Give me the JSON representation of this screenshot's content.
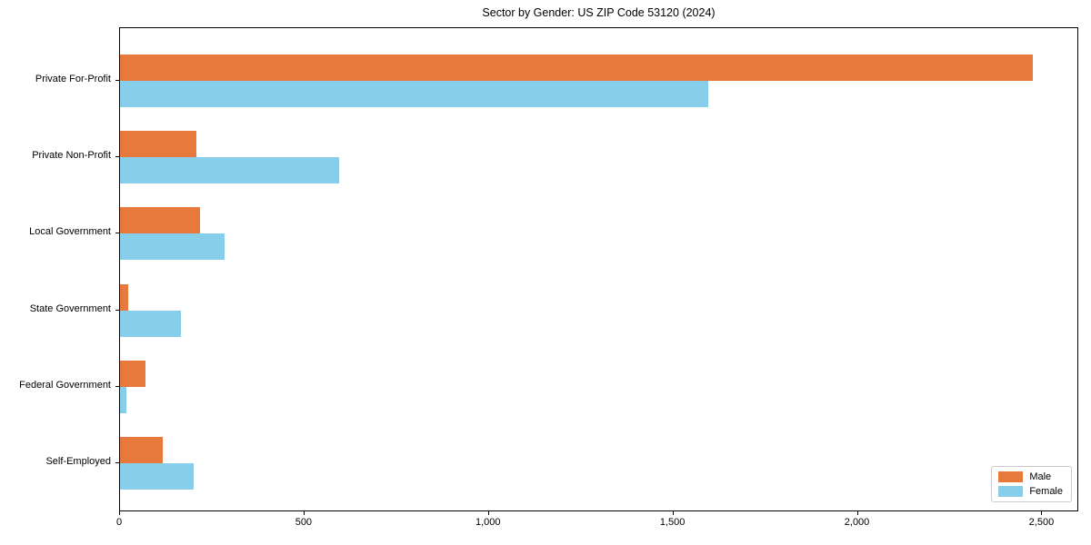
{
  "chart_data": {
    "type": "bar",
    "orientation": "horizontal",
    "title": "Sector by Gender: US ZIP Code 53120 (2024)",
    "categories": [
      "Private For-Profit",
      "Private Non-Profit",
      "Local Government",
      "State Government",
      "Federal Government",
      "Self-Employed"
    ],
    "series": [
      {
        "name": "Male",
        "color": "#e8793d",
        "values": [
          2475,
          207,
          217,
          22,
          69,
          116
        ]
      },
      {
        "name": "Female",
        "color": "#87ceeb",
        "values": [
          1595,
          595,
          283,
          165,
          17,
          200
        ]
      }
    ],
    "xlabel": "",
    "ylabel": "",
    "xlim": [
      0,
      2600
    ],
    "xticks": [
      {
        "value": 0,
        "label": "0"
      },
      {
        "value": 500,
        "label": "500"
      },
      {
        "value": 1000,
        "label": "1,000"
      },
      {
        "value": 1500,
        "label": "1,500"
      },
      {
        "value": 2000,
        "label": "2,000"
      },
      {
        "value": 2500,
        "label": "2,500"
      }
    ],
    "legend": {
      "position": "lower right",
      "entries": [
        "Male",
        "Female"
      ]
    },
    "grid": false,
    "axis_color": "#000000",
    "background_color": "#ffffff"
  }
}
